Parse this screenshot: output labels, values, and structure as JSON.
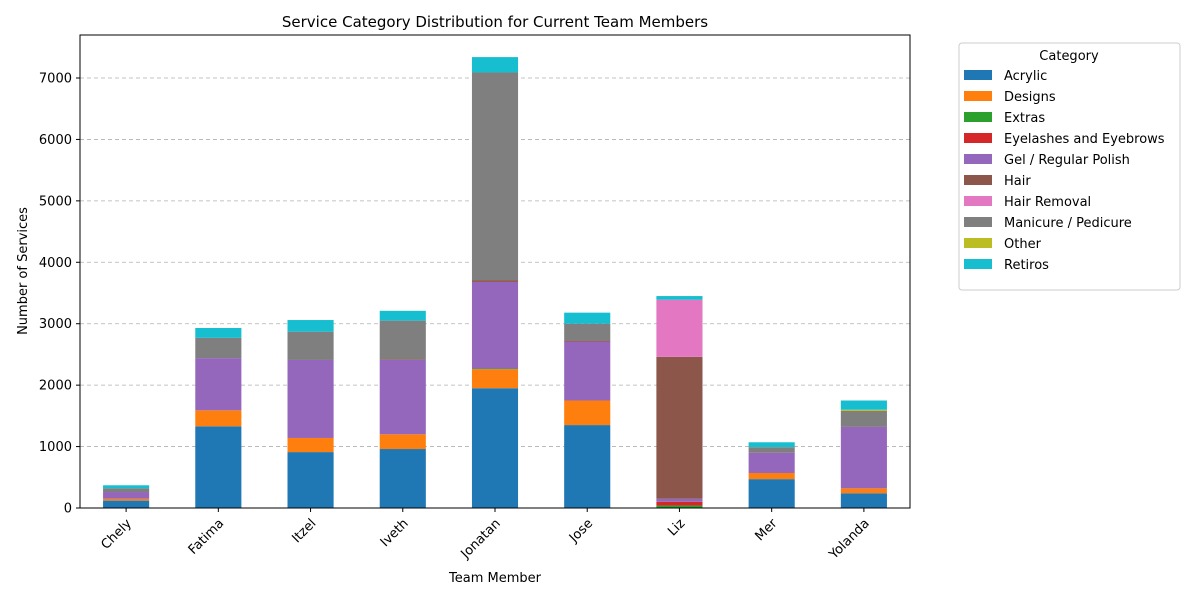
{
  "chart_data": {
    "type": "bar",
    "stacked": true,
    "title": "Service Category Distribution for Current Team Members",
    "xlabel": "Team Member",
    "ylabel": "Number of Services",
    "ylim": [
      0,
      7700
    ],
    "yticks": [
      0,
      1000,
      2000,
      3000,
      4000,
      5000,
      6000,
      7000
    ],
    "grid": "y-dashed",
    "legend_title": "Category",
    "legend_position": "outside-right-top",
    "categories": [
      "Chely",
      "Fatima",
      "Itzel",
      "Iveth",
      "Jonatan",
      "Jose",
      "Liz",
      "Mer",
      "Yolanda"
    ],
    "series": [
      {
        "name": "Acrylic",
        "color": "#1f77b4",
        "values": [
          120,
          1330,
          910,
          960,
          1950,
          1350,
          0,
          470,
          240
        ]
      },
      {
        "name": "Designs",
        "color": "#ff7f0e",
        "values": [
          30,
          260,
          230,
          240,
          310,
          400,
          0,
          100,
          80
        ]
      },
      {
        "name": "Extras",
        "color": "#2ca02c",
        "values": [
          0,
          0,
          0,
          0,
          10,
          0,
          40,
          0,
          0
        ]
      },
      {
        "name": "Eyelashes and Eyebrows",
        "color": "#d62728",
        "values": [
          0,
          0,
          0,
          0,
          0,
          0,
          60,
          0,
          0
        ]
      },
      {
        "name": "Gel / Regular Polish",
        "color": "#9467bd",
        "values": [
          110,
          850,
          1270,
          1210,
          1410,
          960,
          50,
          330,
          1000
        ]
      },
      {
        "name": "Hair",
        "color": "#8c564b",
        "values": [
          0,
          0,
          0,
          10,
          30,
          20,
          2310,
          0,
          0
        ]
      },
      {
        "name": "Hair Removal",
        "color": "#e377c2",
        "values": [
          0,
          0,
          0,
          0,
          0,
          0,
          930,
          0,
          0
        ]
      },
      {
        "name": "Manicure / Pedicure",
        "color": "#7f7f7f",
        "values": [
          60,
          330,
          460,
          630,
          3380,
          270,
          0,
          90,
          260
        ]
      },
      {
        "name": "Other",
        "color": "#bcbd22",
        "values": [
          0,
          0,
          0,
          0,
          0,
          0,
          0,
          0,
          20
        ]
      },
      {
        "name": "Retiros",
        "color": "#17becf",
        "values": [
          50,
          160,
          190,
          160,
          250,
          180,
          60,
          80,
          150
        ]
      }
    ]
  }
}
